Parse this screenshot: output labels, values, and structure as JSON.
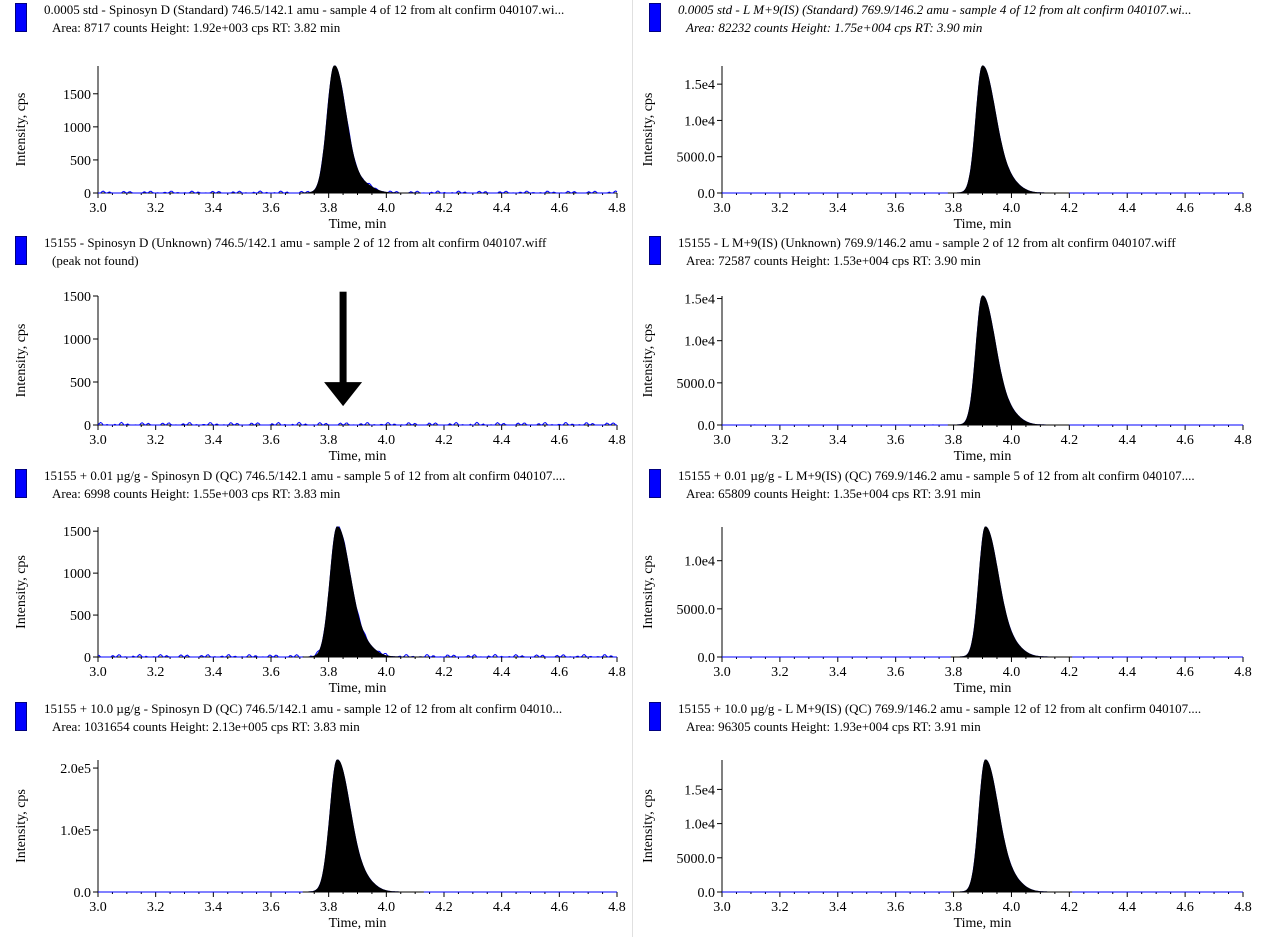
{
  "panels": [
    {
      "title": "0.0005 std - Spinosyn D (Standard) 746.5/142.1 amu - sample 4 of 12 from alt confirm 040107.wi...",
      "subtitle": "Area: 8717 counts  Height: 1.92e+003 cps  RT: 3.82 min",
      "italic": false
    },
    {
      "title": "0.0005 std - L M+9(IS) (Standard) 769.9/146.2 amu - sample 4 of 12 from alt confirm 040107.wi...",
      "subtitle": "Area: 82232 counts  Height: 1.75e+004 cps  RT: 3.90 min",
      "italic": true
    },
    {
      "title": "15155 - Spinosyn D (Unknown) 746.5/142.1 amu - sample 2 of 12 from alt confirm 040107.wiff",
      "subtitle": "(peak not found)",
      "italic": false
    },
    {
      "title": "15155 - L M+9(IS) (Unknown) 769.9/146.2 amu - sample 2 of 12 from alt confirm 040107.wiff",
      "subtitle": "Area: 72587 counts  Height: 1.53e+004 cps  RT: 3.90 min",
      "italic": false
    },
    {
      "title": "15155 + 0.01 µg/g - Spinosyn D (QC) 746.5/142.1 amu - sample 5 of 12 from alt confirm 040107....",
      "subtitle": "Area: 6998 counts  Height: 1.55e+003 cps  RT: 3.83 min",
      "italic": false
    },
    {
      "title": "15155 + 0.01 µg/g - L M+9(IS) (QC) 769.9/146.2 amu - sample 5 of 12 from alt confirm 040107....",
      "subtitle": "Area: 65809 counts  Height: 1.35e+004 cps  RT: 3.91 min",
      "italic": false
    },
    {
      "title": "15155 + 10.0 µg/g - Spinosyn D (QC) 746.5/142.1 amu - sample 12 of 12 from alt confirm 04010...",
      "subtitle": "Area: 1031654 counts  Height: 2.13e+005 cps  RT: 3.83 min",
      "italic": false
    },
    {
      "title": "15155 + 10.0 µg/g - L M+9(IS) (QC) 769.9/146.2 amu - sample 12 of 12 from alt confirm 040107....",
      "subtitle": "Area: 96305 counts  Height: 1.93e+004 cps  RT: 3.91 min",
      "italic": false
    }
  ],
  "chart_data": [
    {
      "type": "area",
      "xlabel": "Time, min",
      "ylabel": "Intensity, cps",
      "xlim": [
        3.0,
        4.8
      ],
      "xticks": [
        "3.0",
        "3.2",
        "3.4",
        "3.6",
        "3.8",
        "4.0",
        "4.2",
        "4.4",
        "4.6",
        "4.8"
      ],
      "ylim": [
        0,
        1920
      ],
      "yticks": [
        {
          "value": 0,
          "label": "0"
        },
        {
          "value": 500,
          "label": "500"
        },
        {
          "value": 1000,
          "label": "1000"
        },
        {
          "value": 1500,
          "label": "1500"
        }
      ],
      "peak": {
        "rt": 3.82,
        "height": 1920,
        "width_left": 0.025,
        "width_right": 0.04
      },
      "fill_color": "#000000",
      "baseline_color": "#0000ff",
      "noise_amplitude": 30
    },
    {
      "type": "area",
      "xlabel": "Time, min",
      "ylabel": "Intensity, cps",
      "xlim": [
        3.0,
        4.8
      ],
      "xticks": [
        "3.0",
        "3.2",
        "3.4",
        "3.6",
        "3.8",
        "4.0",
        "4.2",
        "4.4",
        "4.6",
        "4.8"
      ],
      "ylim": [
        0,
        17500
      ],
      "yticks": [
        {
          "value": 0,
          "label": "0.0"
        },
        {
          "value": 5000,
          "label": "5000.0"
        },
        {
          "value": 10000,
          "label": "1.0e4"
        },
        {
          "value": 15000,
          "label": "1.5e4"
        }
      ],
      "peak": {
        "rt": 3.9,
        "height": 17500,
        "width_left": 0.022,
        "width_right": 0.045
      },
      "fill_color": "#000000",
      "baseline_color": "#0000ff",
      "noise_amplitude": 0
    },
    {
      "type": "area",
      "xlabel": "Time, min",
      "ylabel": "Intensity, cps",
      "xlim": [
        3.0,
        4.8
      ],
      "xticks": [
        "3.0",
        "3.2",
        "3.4",
        "3.6",
        "3.8",
        "4.0",
        "4.2",
        "4.4",
        "4.6",
        "4.8"
      ],
      "ylim": [
        0,
        1500
      ],
      "yticks": [
        {
          "value": 0,
          "label": "0"
        },
        {
          "value": 500,
          "label": "500"
        },
        {
          "value": 1000,
          "label": "1000"
        },
        {
          "value": 1500,
          "label": "1500"
        }
      ],
      "peak": null,
      "fill_color": "#000000",
      "baseline_color": "#0000ff",
      "noise_amplitude": 30,
      "arrow": {
        "x": 3.85,
        "y_top": 1550,
        "y_bottom": 220
      }
    },
    {
      "type": "area",
      "xlabel": "Time, min",
      "ylabel": "Intensity, cps",
      "xlim": [
        3.0,
        4.8
      ],
      "xticks": [
        "3.0",
        "3.2",
        "3.4",
        "3.6",
        "3.8",
        "4.0",
        "4.2",
        "4.4",
        "4.6",
        "4.8"
      ],
      "ylim": [
        0,
        15300
      ],
      "yticks": [
        {
          "value": 0,
          "label": "0.0"
        },
        {
          "value": 5000,
          "label": "5000.0"
        },
        {
          "value": 10000,
          "label": "1.0e4"
        },
        {
          "value": 15000,
          "label": "1.5e4"
        }
      ],
      "peak": {
        "rt": 3.9,
        "height": 15300,
        "width_left": 0.022,
        "width_right": 0.045
      },
      "fill_color": "#000000",
      "baseline_color": "#0000ff",
      "noise_amplitude": 6
    },
    {
      "type": "area",
      "xlabel": "Time, min",
      "ylabel": "Intensity, cps",
      "xlim": [
        3.0,
        4.8
      ],
      "xticks": [
        "3.0",
        "3.2",
        "3.4",
        "3.6",
        "3.8",
        "4.0",
        "4.2",
        "4.4",
        "4.6",
        "4.8"
      ],
      "ylim": [
        0,
        1550
      ],
      "yticks": [
        {
          "value": 0,
          "label": "0"
        },
        {
          "value": 500,
          "label": "500"
        },
        {
          "value": 1000,
          "label": "1000"
        },
        {
          "value": 1500,
          "label": "1500"
        }
      ],
      "peak": {
        "rt": 3.83,
        "height": 1550,
        "width_left": 0.025,
        "width_right": 0.045
      },
      "fill_color": "#000000",
      "baseline_color": "#0000ff",
      "noise_amplitude": 30
    },
    {
      "type": "area",
      "xlabel": "Time, min",
      "ylabel": "Intensity, cps",
      "xlim": [
        3.0,
        4.8
      ],
      "xticks": [
        "3.0",
        "3.2",
        "3.4",
        "3.6",
        "3.8",
        "4.0",
        "4.2",
        "4.4",
        "4.6",
        "4.8"
      ],
      "ylim": [
        0,
        13500
      ],
      "yticks": [
        {
          "value": 0,
          "label": "0.0"
        },
        {
          "value": 5000,
          "label": "5000.0"
        },
        {
          "value": 10000,
          "label": "1.0e4"
        }
      ],
      "peak": {
        "rt": 3.91,
        "height": 13500,
        "width_left": 0.022,
        "width_right": 0.045
      },
      "fill_color": "#000000",
      "baseline_color": "#0000ff",
      "noise_amplitude": 5
    },
    {
      "type": "area",
      "xlabel": "Time, min",
      "ylabel": "Intensity, cps",
      "xlim": [
        3.0,
        4.8
      ],
      "xticks": [
        "3.0",
        "3.2",
        "3.4",
        "3.6",
        "3.8",
        "4.0",
        "4.2",
        "4.4",
        "4.6",
        "4.8"
      ],
      "ylim": [
        0,
        213000
      ],
      "yticks": [
        {
          "value": 0,
          "label": "0.0"
        },
        {
          "value": 100000,
          "label": "1.0e5"
        },
        {
          "value": 200000,
          "label": "2.0e5"
        }
      ],
      "peak": {
        "rt": 3.83,
        "height": 213000,
        "width_left": 0.025,
        "width_right": 0.045
      },
      "fill_color": "#000000",
      "baseline_color": "#0000ff",
      "noise_amplitude": 0
    },
    {
      "type": "area",
      "xlabel": "Time, min",
      "ylabel": "Intensity, cps",
      "xlim": [
        3.0,
        4.8
      ],
      "xticks": [
        "3.0",
        "3.2",
        "3.4",
        "3.6",
        "3.8",
        "4.0",
        "4.2",
        "4.4",
        "4.6",
        "4.8"
      ],
      "ylim": [
        0,
        19300
      ],
      "yticks": [
        {
          "value": 0,
          "label": "0.0"
        },
        {
          "value": 5000,
          "label": "5000.0"
        },
        {
          "value": 10000,
          "label": "1.0e4"
        },
        {
          "value": 15000,
          "label": "1.5e4"
        }
      ],
      "peak": {
        "rt": 3.91,
        "height": 19300,
        "width_left": 0.022,
        "width_right": 0.045
      },
      "fill_color": "#000000",
      "baseline_color": "#0000ff",
      "noise_amplitude": 0
    }
  ]
}
